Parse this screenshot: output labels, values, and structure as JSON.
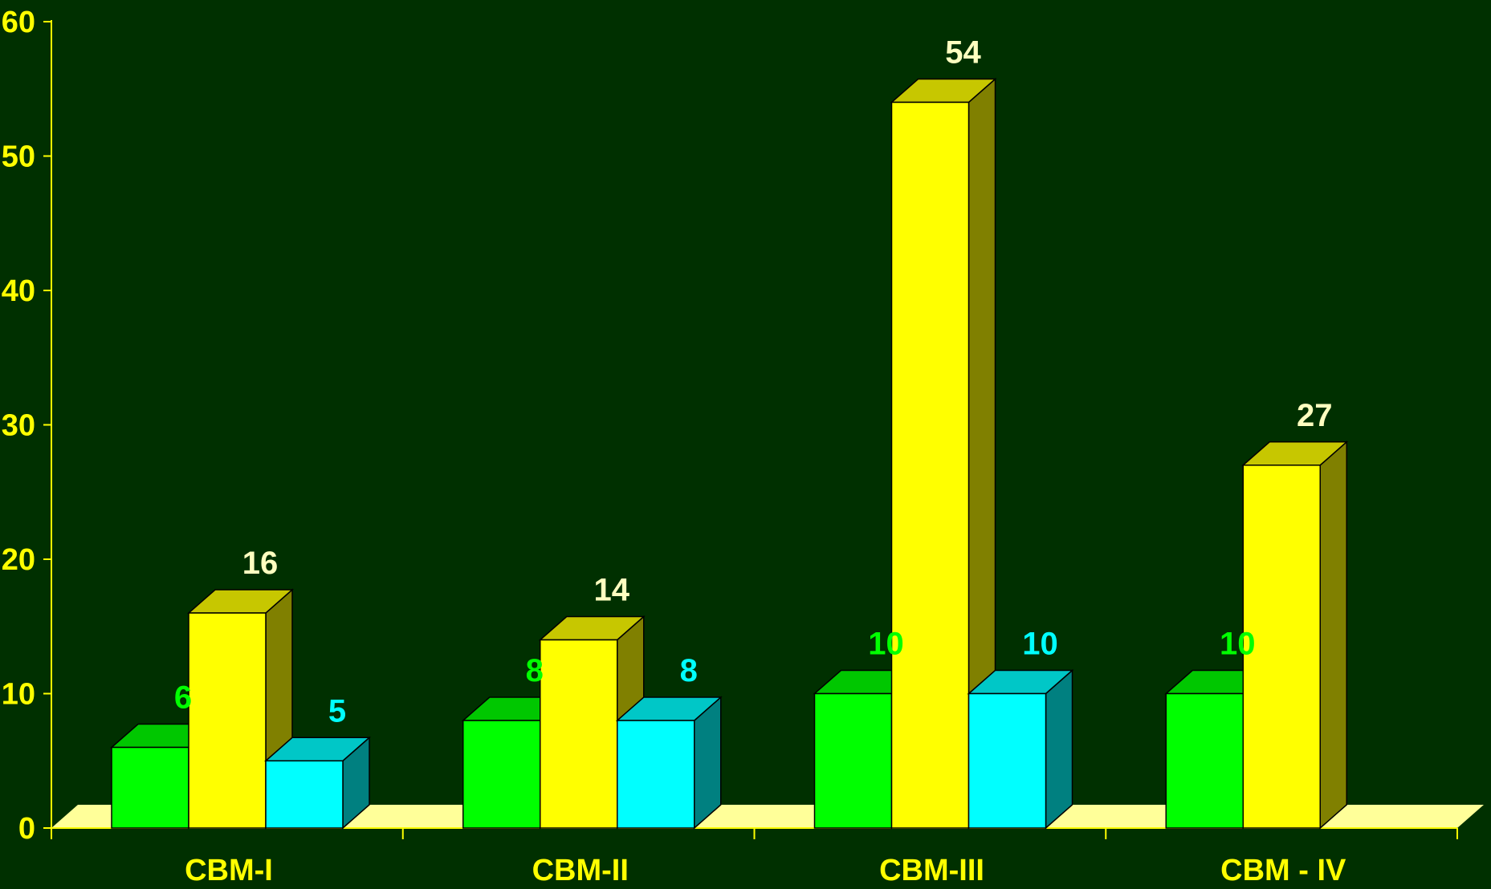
{
  "chart_data": {
    "type": "bar",
    "categories": [
      "CBM-I",
      "CBM-II",
      "CBM-III",
      "CBM - IV"
    ],
    "series": [
      {
        "values": [
          6,
          8,
          10,
          10
        ],
        "color": "#00ff00",
        "label_color": "#00ff00"
      },
      {
        "values": [
          16,
          14,
          54,
          27
        ],
        "color": "#ffff00",
        "label_color": "#ffffc0"
      },
      {
        "values": [
          5,
          8,
          10,
          null
        ],
        "color": "#00ffff",
        "label_color": "#00ffff"
      }
    ],
    "ylim": [
      0,
      60
    ],
    "yticks": [
      0,
      10,
      20,
      30,
      40,
      50,
      60
    ],
    "grid": false,
    "three_d": true,
    "colors": {
      "background": "#003000",
      "axis": "#ffff00",
      "floor": "#ffff99"
    }
  }
}
